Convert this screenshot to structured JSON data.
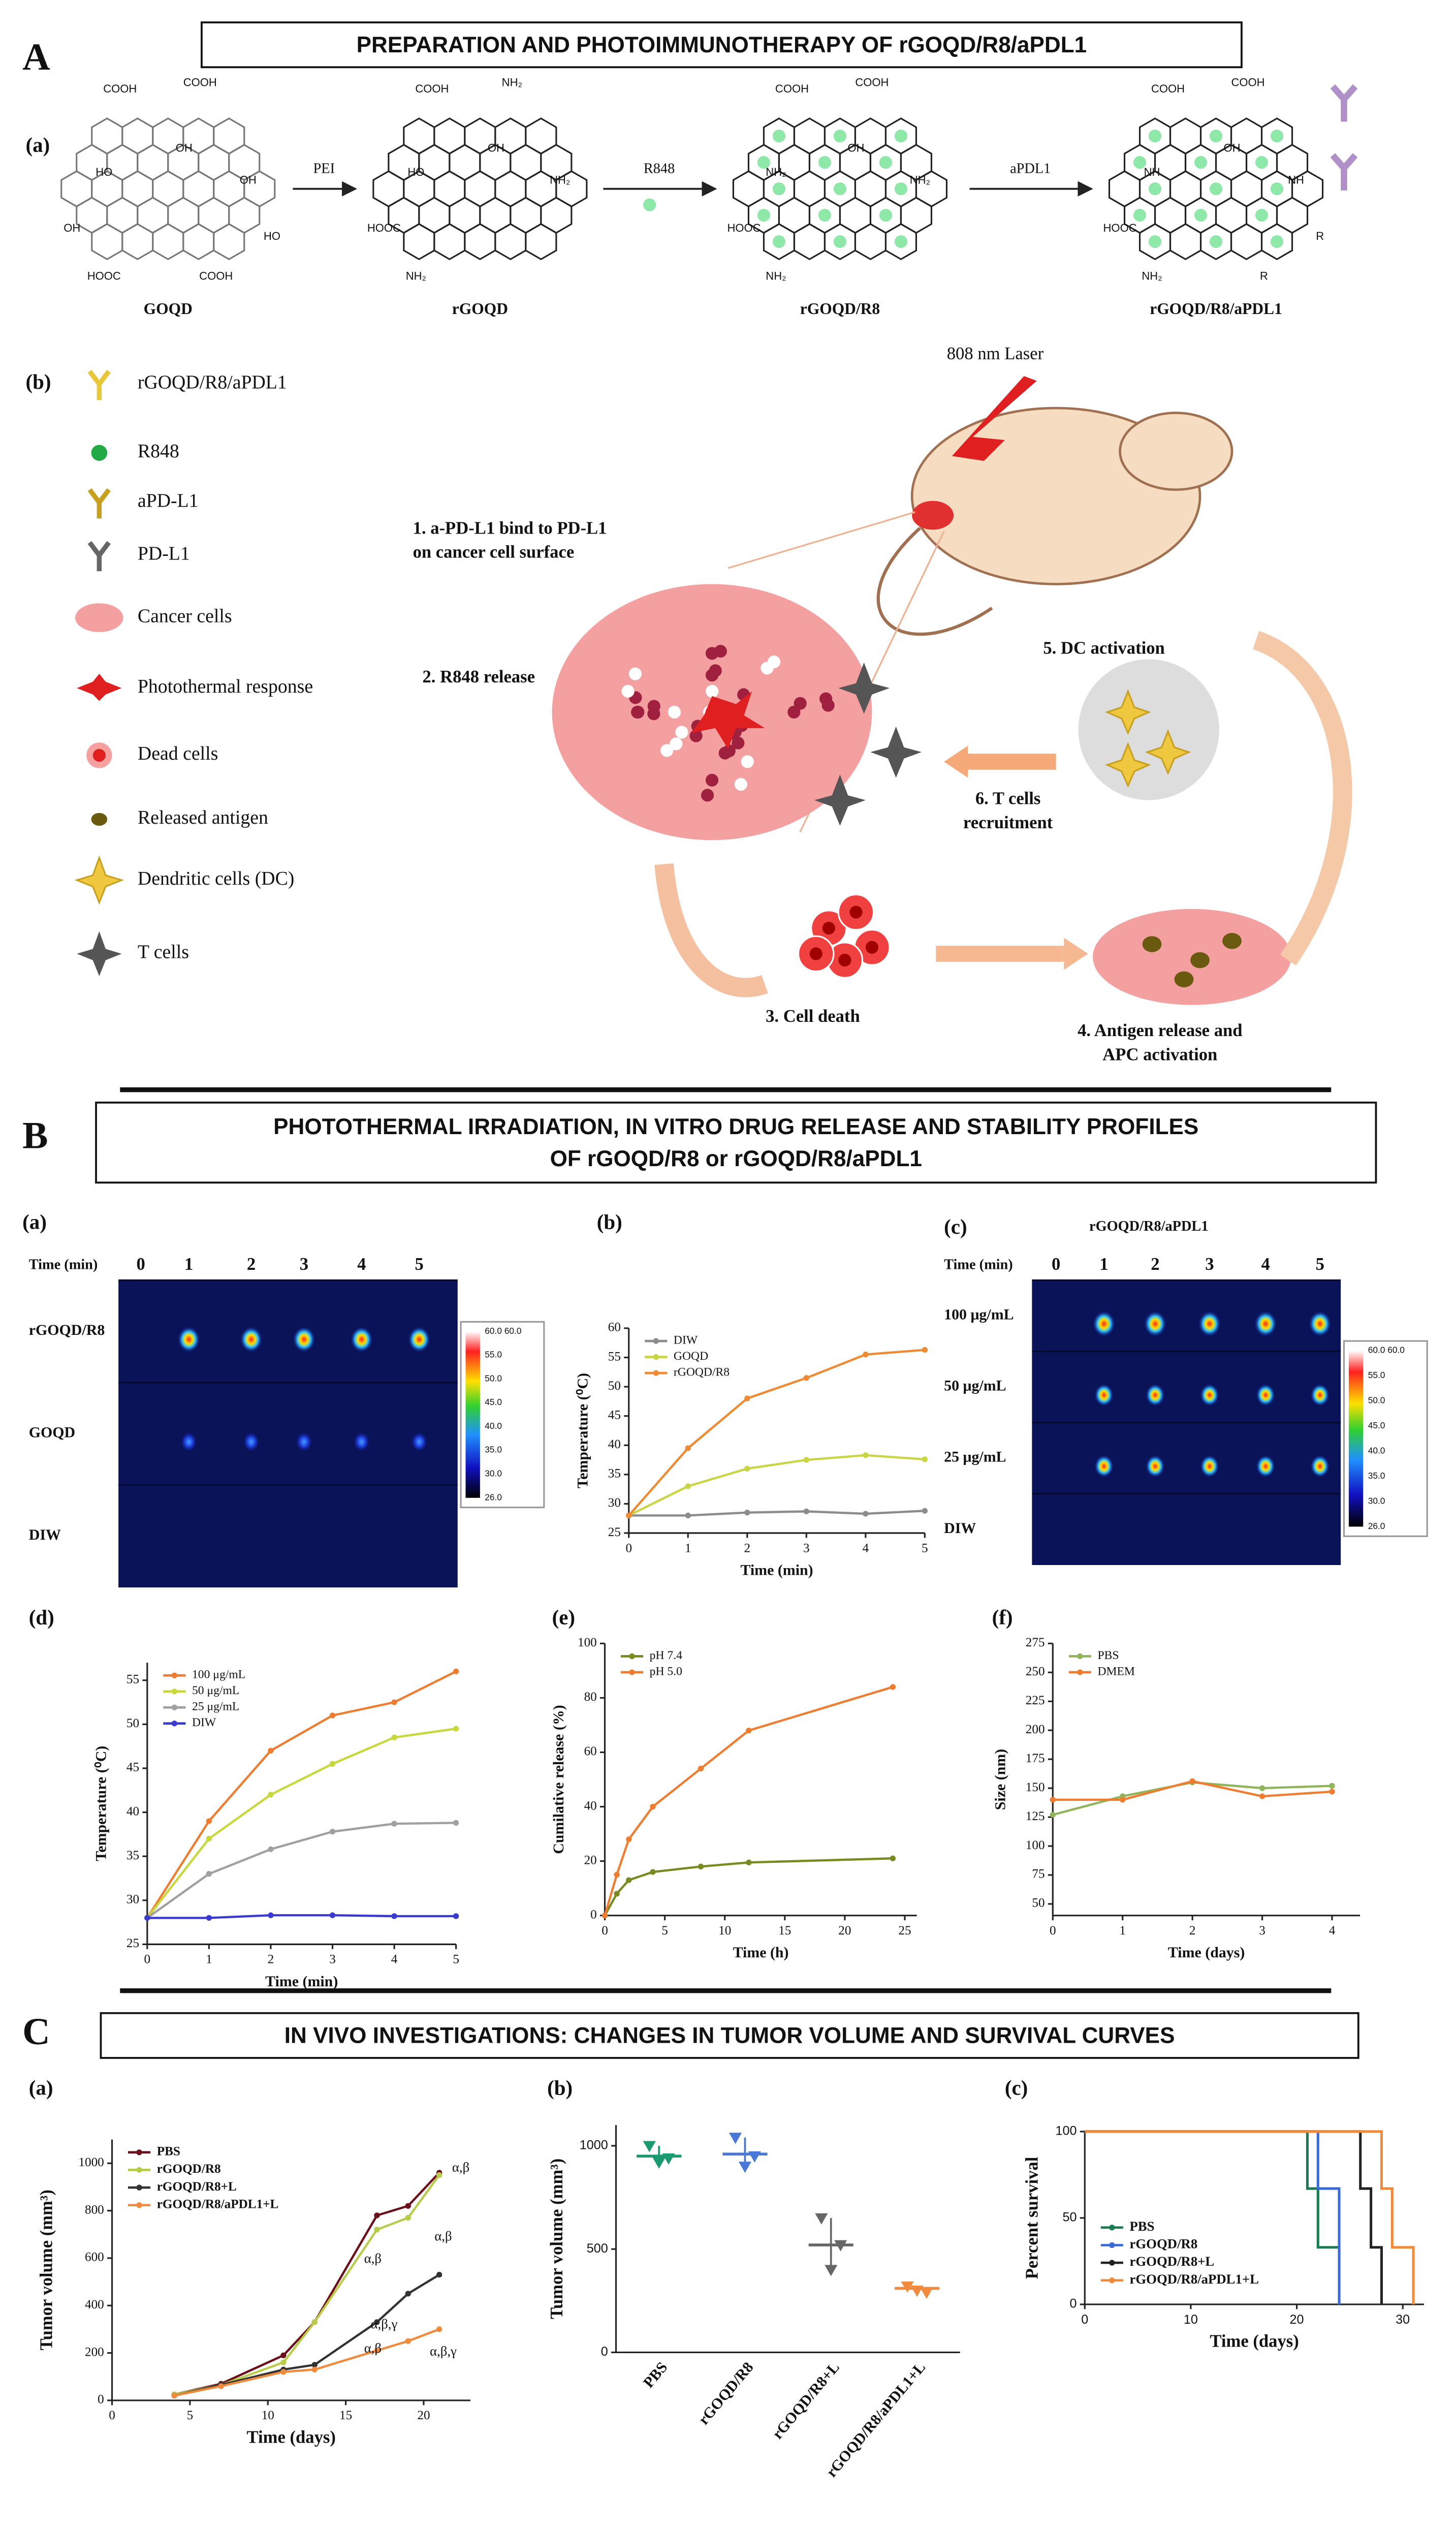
{
  "panel_A": {
    "label": "A",
    "title": "PREPARATION AND PHOTOIMMUNOTHERAPY OF rGOQD/R8/aPDL1",
    "sub_a": "(a)",
    "sub_b": "(b)",
    "structures": [
      {
        "name": "GOQD",
        "groups": [
          "COOH",
          "COOH",
          "OH",
          "HO",
          "OH",
          "OH",
          "HOOC",
          "COOH",
          "HO"
        ]
      },
      {
        "name": "rGOQD",
        "groups": [
          "COOH",
          "NH₂",
          "OH",
          "HO",
          "NH₂",
          "HOOC",
          "NH₂"
        ]
      },
      {
        "name": "rGOQD/R8",
        "groups": [
          "COOH",
          "COOH",
          "OH",
          "NH₂",
          "NH₂",
          "HOOC",
          "NH₂"
        ]
      },
      {
        "name": "rGOQD/R8/aPDL1",
        "groups": [
          "COOH",
          "COOH",
          "OH",
          "NH",
          "NH",
          "HOOC",
          "NH₂",
          "R",
          "R"
        ]
      }
    ],
    "reagents": [
      "PEI",
      "R848",
      "aPDL1"
    ],
    "legend": [
      "rGOQD/R8/aPDL1",
      "R848",
      "aPD-L1",
      "PD-L1",
      "Cancer cells",
      "Photothermal response",
      "Dead cells",
      "Released antigen",
      "Dendritic cells (DC)",
      "T cells"
    ],
    "laser": "808 nm Laser",
    "steps": [
      [
        "1. a-PD-L1 bind to PD-L1",
        "on cancer cell surface"
      ],
      [
        "2. R848 release"
      ],
      [
        "3. Cell death"
      ],
      [
        "4. Antigen release and",
        "APC activation"
      ],
      [
        "5. DC activation"
      ],
      [
        "6. T cells",
        "recruitment"
      ]
    ]
  },
  "panel_B": {
    "label": "B",
    "title_lines": [
      "PHOTOTHERMAL IRRADIATION, IN VITRO DRUG RELEASE AND STABILITY PROFILES",
      "OF rGOQD/R8 or rGOQD/R8/aPDL1"
    ],
    "sub_labels": [
      "(a)",
      "(b)",
      "(c)",
      "(d)",
      "(e)",
      "(f)"
    ]
  },
  "thermal_images": [
    {
      "time_label": "Time (min)",
      "times": [
        "0",
        "1",
        "2",
        "3",
        "4",
        "5"
      ],
      "rows": [
        "rGOQD/R8",
        "GOQD",
        "DIW"
      ],
      "colorbar": [
        "60.0  60.0",
        "55.0",
        "50.0",
        "45.0",
        "40.0",
        "35.0",
        "30.0",
        "26.0"
      ]
    },
    {
      "title": "rGOQD/R8/aPDL1",
      "time_label": "Time (min)",
      "times": [
        "0",
        "1",
        "2",
        "3",
        "4",
        "5"
      ],
      "rows": [
        "100 μg/mL",
        "50 μg/mL",
        "25 μg/mL",
        "DIW"
      ],
      "colorbar": [
        "60.0  60.0",
        "55.0",
        "50.0",
        "45.0",
        "40.0",
        "35.0",
        "30.0",
        "26.0"
      ]
    }
  ],
  "panel_C": {
    "label": "C",
    "title": "IN VIVO INVESTIGATIONS: CHANGES IN TUMOR VOLUME AND SURVIVAL CURVES",
    "sub_labels": [
      "(a)",
      "(b)",
      "(c)"
    ]
  },
  "chart_data": [
    {
      "type": "line",
      "xlabel": "Time (min)",
      "ylabel": "Temperature (⁰C)",
      "x": [
        0,
        1,
        2,
        3,
        4,
        5
      ],
      "xlim": [
        0,
        5
      ],
      "xticks": [
        0,
        1,
        2,
        3,
        4,
        5
      ],
      "ylim": [
        25,
        60
      ],
      "yticks": [
        25,
        30,
        35,
        40,
        45,
        50,
        55,
        60
      ],
      "legend": "upper left",
      "series": [
        {
          "name": "DIW",
          "color": "#8c8c8c",
          "values": [
            28,
            28,
            28.5,
            28.7,
            28.3,
            28.8
          ]
        },
        {
          "name": "GOQD",
          "color": "#c9d545",
          "values": [
            28,
            33,
            36,
            37.5,
            38.3,
            37.6
          ]
        },
        {
          "name": "rGOQD/R8",
          "color": "#ef8a33",
          "values": [
            28,
            39.5,
            48,
            51.5,
            55.5,
            56.3
          ]
        }
      ]
    },
    {
      "type": "line",
      "xlabel": "Time (min)",
      "ylabel": "Temperature (⁰C)",
      "x": [
        0,
        1,
        2,
        3,
        4,
        5
      ],
      "xlim": [
        0,
        5
      ],
      "xticks": [
        0,
        1,
        2,
        3,
        4,
        5
      ],
      "ylim": [
        25,
        57
      ],
      "yticks": [
        25,
        30,
        35,
        40,
        45,
        50,
        55
      ],
      "legend": "upper left",
      "series": [
        {
          "name": "100 μg/mL",
          "color": "#ee7d31",
          "values": [
            28,
            39,
            47,
            51,
            52.5,
            56
          ]
        },
        {
          "name": "50 μg/mL",
          "color": "#c8d83c",
          "values": [
            28,
            37,
            42,
            45.5,
            48.5,
            49.5
          ]
        },
        {
          "name": "25 μg/mL",
          "color": "#a0a0a0",
          "values": [
            28,
            33,
            35.8,
            37.8,
            38.7,
            38.8
          ]
        },
        {
          "name": "DIW",
          "color": "#3a3ad0",
          "values": [
            28,
            28,
            28.3,
            28.3,
            28.2,
            28.2
          ]
        }
      ]
    },
    {
      "type": "line",
      "xlabel": "Time (h)",
      "ylabel": "Cumilative release (%)",
      "x": [
        0,
        1,
        2,
        4,
        8,
        12,
        24
      ],
      "xlim": [
        0,
        26
      ],
      "xticks": [
        0,
        5,
        10,
        15,
        20,
        25
      ],
      "ylim": [
        0,
        100
      ],
      "yticks": [
        0,
        20,
        40,
        60,
        80,
        100
      ],
      "legend": "upper left",
      "series": [
        {
          "name": "pH 7.4",
          "color": "#7a8a20",
          "values": [
            0,
            8,
            13,
            16,
            18,
            19.5,
            21
          ]
        },
        {
          "name": "pH 5.0",
          "color": "#ee7d31",
          "values": [
            0,
            15,
            28,
            40,
            54,
            68,
            84
          ]
        }
      ]
    },
    {
      "type": "line",
      "xlabel": "Time (days)",
      "ylabel": "Size (nm)",
      "x": [
        0,
        1,
        2,
        3,
        4
      ],
      "xlim": [
        0,
        4.4
      ],
      "xticks": [
        0,
        1,
        2,
        3,
        4
      ],
      "ylim": [
        40,
        275
      ],
      "yticks": [
        50,
        75,
        100,
        125,
        150,
        175,
        200,
        225,
        250,
        275
      ],
      "legend": "upper left",
      "series": [
        {
          "name": "PBS",
          "color": "#8fb45a",
          "values": [
            127,
            143,
            155,
            150,
            152
          ]
        },
        {
          "name": "DMEM",
          "color": "#ee7d31",
          "values": [
            140,
            140,
            156,
            143,
            147
          ]
        }
      ]
    },
    {
      "type": "line",
      "xlabel": "Time (days)",
      "ylabel": "Tumor volume (mm³)",
      "x": [
        4,
        7,
        11,
        13,
        17,
        19,
        21
      ],
      "xlim": [
        0,
        23
      ],
      "xticks": [
        0,
        5,
        10,
        15,
        20
      ],
      "ylim": [
        0,
        1100
      ],
      "yticks": [
        0,
        200,
        400,
        600,
        800,
        1000
      ],
      "legend": "upper left",
      "annotations": [
        "α,β",
        "α,β",
        "α,β",
        "α,β,γ",
        "α,β,γ",
        "α,β"
      ],
      "series": [
        {
          "name": "PBS",
          "color": "#6b0f1a",
          "values": [
            25,
            70,
            190,
            330,
            780,
            820,
            960
          ]
        },
        {
          "name": "rGOQD/R8",
          "color": "#b8cc4a",
          "values": [
            25,
            65,
            160,
            330,
            720,
            770,
            950
          ]
        },
        {
          "name": "rGOQD/R8+L",
          "color": "#333333",
          "values": [
            20,
            65,
            130,
            150,
            330,
            450,
            530
          ]
        },
        {
          "name": "rGOQD/R8/aPDL1+L",
          "color": "#f08a3c",
          "values": [
            20,
            60,
            120,
            130,
            210,
            250,
            300
          ]
        }
      ]
    },
    {
      "type": "dot",
      "ylabel": "Tumor volume (mm³)",
      "categories": [
        "PBS",
        "rGOQD/R8",
        "rGOQD/R8+L",
        "rGOQD/R8/aPDL1+L"
      ],
      "ylim": [
        0,
        1100
      ],
      "yticks": [
        0,
        500,
        1000
      ],
      "colors": [
        "#1a9a70",
        "#4a78d8",
        "#666666",
        "#f08a3c"
      ],
      "points": [
        [
          1000,
          920,
          940
        ],
        [
          1040,
          900,
          950
        ],
        [
          650,
          400,
          520
        ],
        [
          320,
          300,
          290
        ]
      ],
      "means": [
        950,
        960,
        520,
        310
      ]
    },
    {
      "type": "step",
      "xlabel": "Time (days)",
      "ylabel": "Percent survival",
      "xlim": [
        0,
        32
      ],
      "xticks": [
        0,
        10,
        20,
        30
      ],
      "ylim": [
        0,
        100
      ],
      "yticks": [
        0,
        50,
        100
      ],
      "legend": "lower left",
      "series": [
        {
          "name": "PBS",
          "color": "#1a7a50",
          "x": [
            0,
            21,
            21,
            22,
            22,
            24,
            24
          ],
          "values": [
            100,
            100,
            67,
            67,
            33,
            33,
            0
          ]
        },
        {
          "name": "rGOQD/R8",
          "color": "#3a6ad8",
          "x": [
            0,
            22,
            22,
            24,
            24
          ],
          "values": [
            100,
            100,
            67,
            67,
            0
          ]
        },
        {
          "name": "rGOQD/R8+L",
          "color": "#222222",
          "x": [
            0,
            26,
            26,
            27,
            27,
            28,
            28
          ],
          "values": [
            100,
            100,
            67,
            67,
            33,
            33,
            0
          ]
        },
        {
          "name": "rGOQD/R8/aPDL1+L",
          "color": "#f08a3c",
          "x": [
            0,
            28,
            28,
            29,
            29,
            31,
            31
          ],
          "values": [
            100,
            100,
            67,
            67,
            33,
            33,
            0
          ]
        }
      ]
    }
  ]
}
